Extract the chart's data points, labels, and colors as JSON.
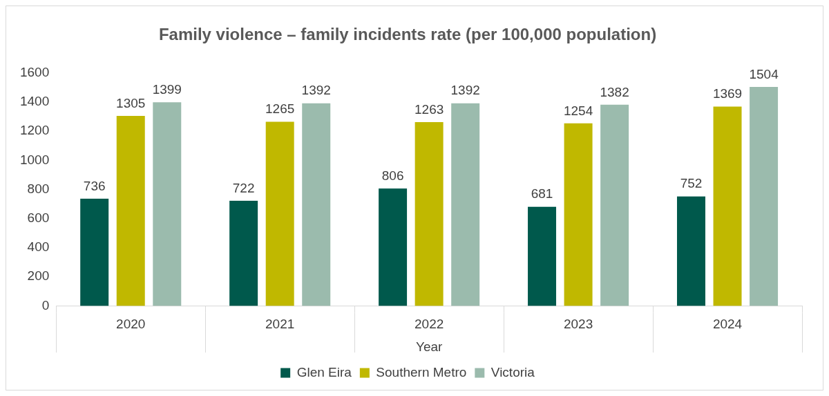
{
  "chart_data": {
    "type": "bar",
    "title": "Family violence – family incidents rate (per 100,000 population)",
    "xlabel": "Year",
    "categories": [
      "2020",
      "2021",
      "2022",
      "2023",
      "2024"
    ],
    "series": [
      {
        "name": "Glen Eira",
        "color": "#00594c",
        "values": [
          736,
          722,
          806,
          681,
          752
        ]
      },
      {
        "name": "Southern Metro",
        "color": "#c0b800",
        "values": [
          1305,
          1265,
          1263,
          1254,
          1369
        ]
      },
      {
        "name": "Victoria",
        "color": "#9bbbad",
        "values": [
          1399,
          1392,
          1392,
          1382,
          1504
        ]
      }
    ],
    "ylim": [
      0,
      1600
    ],
    "yticks": [
      0,
      200,
      400,
      600,
      800,
      1000,
      1200,
      1400,
      1600
    ],
    "grid": false,
    "legend": "bottom",
    "data_labels": true
  }
}
